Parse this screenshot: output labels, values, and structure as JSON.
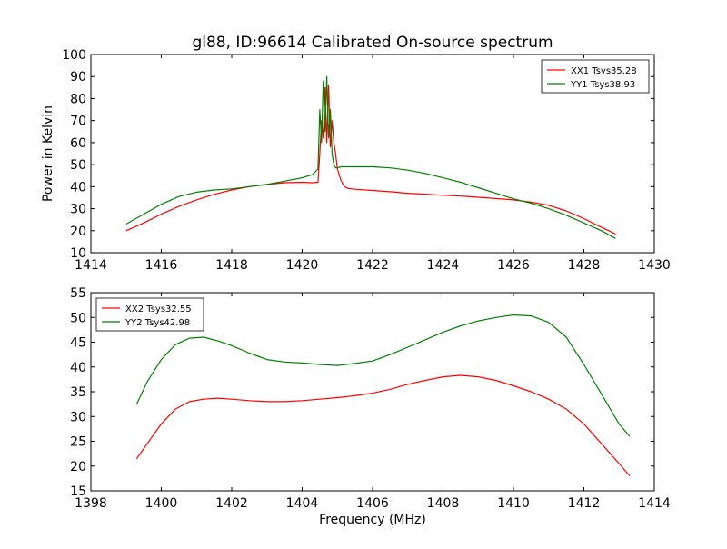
{
  "chart_data": [
    {
      "type": "line",
      "title": "gl88, ID:96614 Calibrated On-source spectrum",
      "xlabel": "",
      "ylabel": "Power in Kelvin",
      "xlim": [
        1414,
        1430
      ],
      "ylim": [
        10,
        100
      ],
      "xticks": [
        1414,
        1416,
        1418,
        1420,
        1422,
        1424,
        1426,
        1428,
        1430
      ],
      "yticks": [
        10,
        20,
        30,
        40,
        50,
        60,
        70,
        80,
        90,
        100
      ],
      "grid": false,
      "legend_position": "top-right",
      "series": [
        {
          "name": "XX1 Tsys35.28",
          "color": "#ff0000",
          "x": [
            1415.0,
            1415.5,
            1416.0,
            1416.5,
            1417.0,
            1417.5,
            1418.0,
            1418.5,
            1419.0,
            1419.5,
            1420.0,
            1420.3,
            1420.45,
            1420.5,
            1420.55,
            1420.6,
            1420.65,
            1420.7,
            1420.75,
            1420.8,
            1420.85,
            1420.9,
            1420.95,
            1421.0,
            1421.1,
            1421.2,
            1421.3,
            1421.5,
            1422.0,
            1422.5,
            1423.0,
            1423.5,
            1424.0,
            1424.5,
            1425.0,
            1425.5,
            1426.0,
            1426.5,
            1427.0,
            1427.5,
            1428.0,
            1428.5,
            1428.9
          ],
          "y": [
            20.0,
            23.5,
            27.5,
            31.0,
            34.0,
            36.5,
            38.5,
            40.0,
            41.0,
            41.8,
            42.0,
            41.8,
            42.0,
            55.0,
            70.0,
            62.0,
            85.0,
            60.0,
            86.0,
            58.0,
            70.0,
            60.0,
            55.0,
            48.0,
            43.0,
            40.0,
            39.2,
            38.8,
            38.3,
            37.7,
            37.0,
            36.6,
            36.1,
            35.7,
            35.2,
            34.6,
            34.0,
            33.0,
            31.5,
            29.0,
            25.5,
            21.5,
            18.5
          ]
        },
        {
          "name": "YY1 Tsys38.93",
          "color": "#008000",
          "x": [
            1415.0,
            1415.5,
            1416.0,
            1416.5,
            1417.0,
            1417.5,
            1418.0,
            1418.5,
            1419.0,
            1419.5,
            1420.0,
            1420.3,
            1420.45,
            1420.5,
            1420.55,
            1420.6,
            1420.65,
            1420.7,
            1420.75,
            1420.8,
            1420.85,
            1420.9,
            1420.95,
            1421.0,
            1421.1,
            1421.2,
            1421.3,
            1421.5,
            1422.0,
            1422.5,
            1423.0,
            1423.5,
            1424.0,
            1424.5,
            1425.0,
            1425.5,
            1426.0,
            1426.5,
            1427.0,
            1427.5,
            1428.0,
            1428.5,
            1428.9
          ],
          "y": [
            23.0,
            27.5,
            32.0,
            35.5,
            37.5,
            38.5,
            39.0,
            40.0,
            41.0,
            42.5,
            44.0,
            45.5,
            48.0,
            75.0,
            60.0,
            88.0,
            65.0,
            90.0,
            62.0,
            75.0,
            55.0,
            50.0,
            48.5,
            48.5,
            49.0,
            49.0,
            49.0,
            49.0,
            49.0,
            48.5,
            47.5,
            46.0,
            44.0,
            42.0,
            39.5,
            37.0,
            34.5,
            32.5,
            30.0,
            27.0,
            23.5,
            20.0,
            16.5
          ]
        }
      ]
    },
    {
      "type": "line",
      "title": "",
      "xlabel": "Frequency (MHz)",
      "ylabel": "",
      "xlim": [
        1398,
        1414
      ],
      "ylim": [
        15,
        55
      ],
      "xticks": [
        1398,
        1400,
        1402,
        1404,
        1406,
        1408,
        1410,
        1412,
        1414
      ],
      "yticks": [
        15,
        20,
        25,
        30,
        35,
        40,
        45,
        50,
        55
      ],
      "grid": false,
      "legend_position": "top-left",
      "series": [
        {
          "name": "XX2 Tsys32.55",
          "color": "#ff0000",
          "x": [
            1399.3,
            1399.6,
            1400.0,
            1400.4,
            1400.8,
            1401.2,
            1401.6,
            1402.0,
            1402.5,
            1403.0,
            1403.5,
            1404.0,
            1404.5,
            1405.0,
            1405.5,
            1406.0,
            1406.5,
            1407.0,
            1407.5,
            1408.0,
            1408.5,
            1409.0,
            1409.5,
            1410.0,
            1410.5,
            1411.0,
            1411.5,
            1412.0,
            1412.5,
            1413.0,
            1413.3
          ],
          "y": [
            21.5,
            24.5,
            28.5,
            31.5,
            33.0,
            33.5,
            33.7,
            33.5,
            33.2,
            33.0,
            33.0,
            33.2,
            33.5,
            33.8,
            34.2,
            34.7,
            35.5,
            36.5,
            37.3,
            38.0,
            38.3,
            38.0,
            37.3,
            36.2,
            35.0,
            33.5,
            31.5,
            28.5,
            24.5,
            20.5,
            18.0
          ]
        },
        {
          "name": "YY2 Tsys42.98",
          "color": "#008000",
          "x": [
            1399.3,
            1399.6,
            1400.0,
            1400.4,
            1400.8,
            1401.2,
            1401.6,
            1402.0,
            1402.5,
            1403.0,
            1403.5,
            1404.0,
            1404.5,
            1405.0,
            1405.5,
            1406.0,
            1406.5,
            1407.0,
            1407.5,
            1408.0,
            1408.5,
            1409.0,
            1409.5,
            1410.0,
            1410.5,
            1411.0,
            1411.5,
            1412.0,
            1412.5,
            1413.0,
            1413.3
          ],
          "y": [
            32.5,
            37.0,
            41.5,
            44.5,
            45.8,
            46.0,
            45.3,
            44.3,
            42.8,
            41.5,
            41.0,
            40.8,
            40.5,
            40.3,
            40.7,
            41.2,
            42.5,
            44.0,
            45.5,
            47.0,
            48.3,
            49.3,
            50.0,
            50.5,
            50.3,
            49.0,
            46.0,
            40.5,
            34.5,
            28.5,
            26.0
          ]
        }
      ]
    }
  ]
}
